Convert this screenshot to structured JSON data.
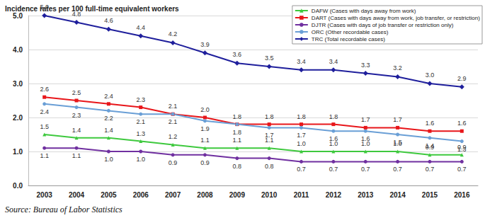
{
  "chart_data": {
    "type": "line",
    "title": "Incidence rates per 100 full-time equivalent workers",
    "source": "Source: Bureau of Labor Statistics",
    "categories": [
      "2003",
      "2004",
      "2005",
      "2006",
      "2007",
      "2008",
      "2009",
      "2010",
      "2011",
      "2012",
      "2013",
      "2014",
      "2015",
      "2016"
    ],
    "ylim": [
      0,
      5
    ],
    "yticks": [
      {
        "value": 0,
        "label": "0.0"
      },
      {
        "value": 1,
        "label": "1.0"
      },
      {
        "value": 2,
        "label": "2.0"
      },
      {
        "value": 3,
        "label": "3.0"
      },
      {
        "value": 4,
        "label": "4.0"
      },
      {
        "value": 5,
        "label": "5.0"
      }
    ],
    "grid": true,
    "legend": "upper right",
    "data_labels": true,
    "series": [
      {
        "name": "DAFW (Cases with days away from work)",
        "color": "#3ec93e",
        "marker": "triangle",
        "values": [
          1.5,
          1.4,
          1.4,
          1.3,
          1.2,
          1.1,
          1.1,
          1.1,
          1.0,
          1.0,
          1.0,
          1.0,
          0.9,
          0.9
        ],
        "value_labels": [
          "1.5",
          "1.4",
          "1.4",
          "1.3",
          "1.2",
          "1.1",
          "1.1",
          "1.1",
          "1.0",
          "1.0",
          "1.0",
          "1.0",
          "0.9",
          "0.9"
        ]
      },
      {
        "name": "DART (Cases with days away from work, job transfer, or restriction)",
        "color": "#e8161a",
        "marker": "square",
        "values": [
          2.6,
          2.5,
          2.4,
          2.3,
          2.1,
          2.0,
          1.8,
          1.8,
          1.8,
          1.8,
          1.7,
          1.7,
          1.6,
          1.6
        ],
        "value_labels": [
          "2.6",
          "2.5",
          "2.4",
          "2.3",
          "2.1",
          "2.0",
          "1.8",
          "1.8",
          "1.8",
          "1.8",
          "1.7",
          "1.7",
          "1.6",
          "1.6"
        ]
      },
      {
        "name": "DJTR (Cases with days of job transfer or restriction only)",
        "color": "#7030a0",
        "marker": "circle",
        "values": [
          1.1,
          1.1,
          1.0,
          1.0,
          0.9,
          0.9,
          0.8,
          0.8,
          0.7,
          0.7,
          0.7,
          0.7,
          0.7,
          0.7
        ],
        "value_labels": [
          "1.1",
          "1.1",
          "1.0",
          "1.0",
          "0.9",
          "0.9",
          "0.8",
          "0.8",
          "0.7",
          "0.7",
          "0.7",
          "0.7",
          "0.7",
          "0.7"
        ]
      },
      {
        "name": "ORC (Other recordable cases)",
        "color": "#6a9fd6",
        "marker": "circle",
        "values": [
          2.4,
          2.3,
          2.2,
          2.1,
          2.1,
          1.9,
          1.8,
          1.7,
          1.7,
          1.6,
          1.6,
          1.5,
          1.4,
          1.3
        ],
        "value_labels": [
          "2.4",
          "2.3",
          "2.2",
          "2.1",
          "2.1",
          "1.9",
          "1.8",
          "1.7",
          "1.7",
          "1.6",
          "1.6",
          "1.5",
          "1.4",
          "1.3"
        ]
      },
      {
        "name": "TRC (Total recordable cases)",
        "color": "#1f1f9c",
        "marker": "diamond",
        "values": [
          5.0,
          4.8,
          4.6,
          4.4,
          4.2,
          3.9,
          3.6,
          3.5,
          3.4,
          3.4,
          3.3,
          3.2,
          3.0,
          2.9
        ],
        "value_labels": [
          "5.0",
          "4.8",
          "4.6",
          "4.4",
          "4.2",
          "3.9",
          "3.6",
          "3.5",
          "3.4",
          "3.4",
          "3.3",
          "3.2",
          "3.0",
          "2.9"
        ]
      }
    ]
  }
}
